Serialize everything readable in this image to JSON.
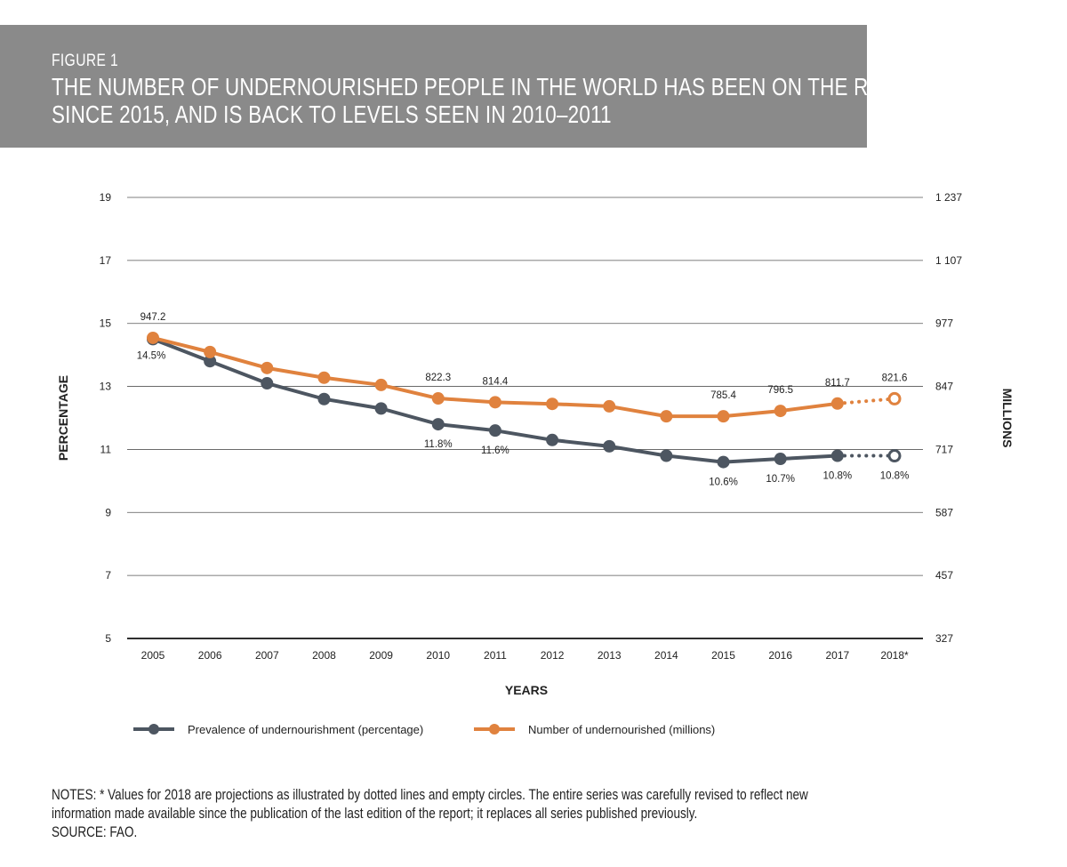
{
  "figure": {
    "label": "FIGURE 1",
    "title_line1": "THE NUMBER OF UNDERNOURISHED PEOPLE IN THE WORLD HAS BEEN ON THE RISE",
    "title_line2": "SINCE 2015, AND IS BACK TO LEVELS SEEN IN 2010–2011"
  },
  "notes": {
    "line1": "NOTES: * Values for 2018 are projections as illustrated by dotted lines and empty circles. The entire series was carefully revised to reflect new",
    "line2": "information made available since the publication of the last edition of the report; it replaces all series published previously.",
    "source": "SOURCE: FAO."
  },
  "colors": {
    "prevalence": "#4d5661",
    "number": "#e0823e",
    "grid": "#555555"
  },
  "chart_data": {
    "type": "line",
    "categories": [
      "2005",
      "2006",
      "2007",
      "2008",
      "2009",
      "2010",
      "2011",
      "2012",
      "2013",
      "2014",
      "2015",
      "2016",
      "2017",
      "2018*"
    ],
    "xlabel": "YEARS",
    "ylabel_left": "PERCENTAGE",
    "ylabel_right": "MILLIONS",
    "y_left_ticks": [
      "19",
      "17",
      "15",
      "13",
      "11",
      "9",
      "7",
      "5"
    ],
    "y_right_ticks": [
      "1 237",
      "1 107",
      "977",
      "847",
      "717",
      "587",
      "457",
      "327"
    ],
    "ylim_left": [
      5,
      19
    ],
    "ylim_right": [
      327,
      1237
    ],
    "projected_from_index": 12,
    "series": [
      {
        "name": "Prevalence of undernourishment (percentage)",
        "axis": "left",
        "values": [
          14.5,
          13.8,
          13.1,
          12.6,
          12.3,
          11.8,
          11.6,
          11.3,
          11.1,
          10.8,
          10.6,
          10.7,
          10.8,
          10.8
        ],
        "labels": [
          {
            "index": 0,
            "text": "14.5%"
          },
          {
            "index": 5,
            "text": "11.8%"
          },
          {
            "index": 6,
            "text": "11.6%"
          },
          {
            "index": 10,
            "text": "10.6%"
          },
          {
            "index": 11,
            "text": "10.7%"
          },
          {
            "index": 12,
            "text": "10.8%"
          },
          {
            "index": 13,
            "text": "10.8%"
          }
        ]
      },
      {
        "name": "Number of undernourished (millions)",
        "axis": "right",
        "values": [
          947.2,
          918,
          885,
          865,
          850,
          822.3,
          814.4,
          811,
          806,
          785.4,
          785.4,
          796.5,
          811.7,
          821.6
        ],
        "labels": [
          {
            "index": 0,
            "text": "947.2"
          },
          {
            "index": 5,
            "text": "822.3"
          },
          {
            "index": 6,
            "text": "814.4"
          },
          {
            "index": 10,
            "text": "785.4"
          },
          {
            "index": 11,
            "text": "796.5"
          },
          {
            "index": 12,
            "text": "811.7"
          },
          {
            "index": 13,
            "text": "821.6"
          }
        ]
      }
    ]
  }
}
